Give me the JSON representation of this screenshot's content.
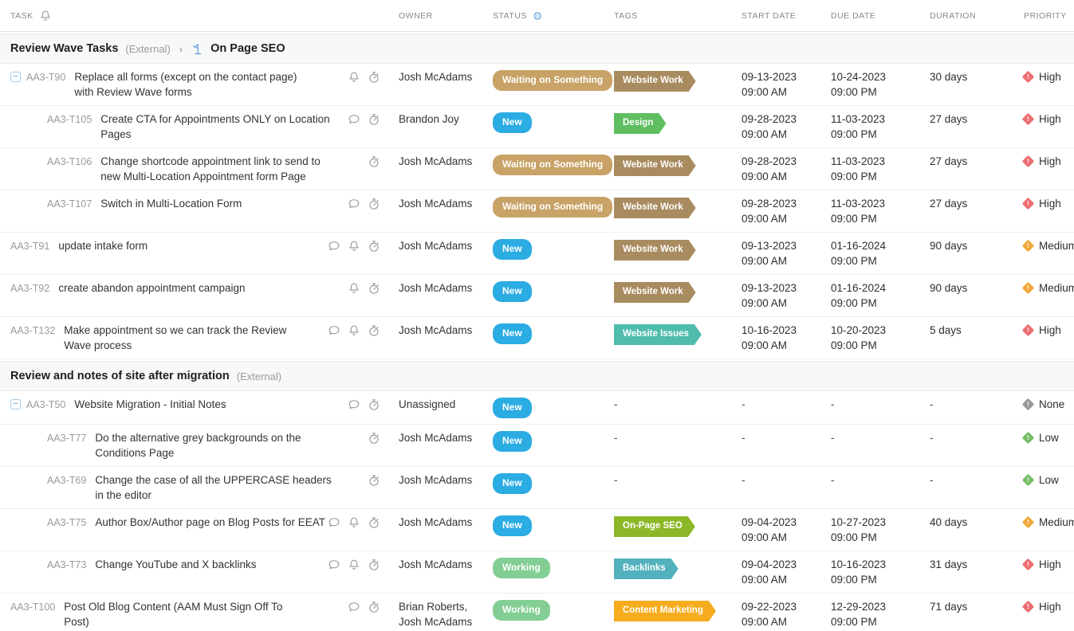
{
  "header": {
    "columns": [
      "TASK",
      "OWNER",
      "STATUS",
      "TAGS",
      "START DATE",
      "DUE DATE",
      "DURATION",
      "PRIORITY"
    ],
    "task_icon": "bell-icon",
    "status_icon": "gear-icon"
  },
  "ui": {
    "dash": "-",
    "expand_glyph": "−",
    "gear_glyph": "⚙",
    "crumb_separator": "›"
  },
  "colors": {
    "status": {
      "New": "#2BACE2",
      "Waiting on Something": "#C8A266",
      "Working": "#83CE94"
    },
    "tags": {
      "Website Work": "#A98B60",
      "Design": "#5FBE5F",
      "Website Issues": "#4FBCAC",
      "On-Page SEO": "#8CB827",
      "Backlinks": "#51B1BC",
      "Content Marketing": "#F6AC1D"
    },
    "priority": {
      "High": "#ED6E72",
      "Medium": "#F1A83B",
      "Low": "#76BD68",
      "None": "#98999B"
    },
    "checkbox_accent": "#3f9ddc",
    "gear_accent": "#6fa7dd",
    "milestone_flag": "#5e9bd5",
    "icon_grey": "#9aa0a6"
  },
  "sections": [
    {
      "title": "Review Wave Tasks",
      "external": "(External)",
      "milestone": "On Page SEO",
      "rows": [
        {
          "id": "AA3-T90",
          "parent": true,
          "indent": 0,
          "title": "Replace all forms (except on the contact page) with Review Wave forms",
          "icons": [
            "bell",
            "timer"
          ],
          "owner": "Josh McAdams",
          "status": "Waiting on Something",
          "tag": "Website Work",
          "start": {
            "date": "09-13-2023",
            "time": "09:00 AM"
          },
          "due": {
            "date": "10-24-2023",
            "time": "09:00 PM"
          },
          "duration": "30 days",
          "priority": "High"
        },
        {
          "id": "AA3-T105",
          "parent": false,
          "indent": 1,
          "title": "Create CTA for Appointments ONLY on Location Pages",
          "icons": [
            "comment",
            "timer"
          ],
          "owner": "Brandon Joy",
          "status": "New",
          "tag": "Design",
          "start": {
            "date": "09-28-2023",
            "time": "09:00 AM"
          },
          "due": {
            "date": "11-03-2023",
            "time": "09:00 PM"
          },
          "duration": "27 days",
          "priority": "High"
        },
        {
          "id": "AA3-T106",
          "parent": false,
          "indent": 1,
          "title": "Change shortcode appointment link to send to new Multi-Location Appointment form Page",
          "icons": [
            "timer"
          ],
          "owner": "Josh McAdams",
          "status": "Waiting on Something",
          "tag": "Website Work",
          "start": {
            "date": "09-28-2023",
            "time": "09:00 AM"
          },
          "due": {
            "date": "11-03-2023",
            "time": "09:00 PM"
          },
          "duration": "27 days",
          "priority": "High"
        },
        {
          "id": "AA3-T107",
          "parent": false,
          "indent": 1,
          "title": "Switch in Multi-Location Form",
          "icons": [
            "comment",
            "timer"
          ],
          "owner": "Josh McAdams",
          "status": "Waiting on Something",
          "tag": "Website Work",
          "start": {
            "date": "09-28-2023",
            "time": "09:00 AM"
          },
          "due": {
            "date": "11-03-2023",
            "time": "09:00 PM"
          },
          "duration": "27 days",
          "priority": "High"
        },
        {
          "id": "AA3-T91",
          "parent": false,
          "indent": 0,
          "title": "update intake form",
          "icons": [
            "comment",
            "bell",
            "timer"
          ],
          "owner": "Josh McAdams",
          "status": "New",
          "tag": "Website Work",
          "start": {
            "date": "09-13-2023",
            "time": "09:00 AM"
          },
          "due": {
            "date": "01-16-2024",
            "time": "09:00 PM"
          },
          "duration": "90 days",
          "priority": "Medium"
        },
        {
          "id": "AA3-T92",
          "parent": false,
          "indent": 0,
          "title": "create abandon appointment campaign",
          "icons": [
            "bell",
            "timer"
          ],
          "owner": "Josh McAdams",
          "status": "New",
          "tag": "Website Work",
          "start": {
            "date": "09-13-2023",
            "time": "09:00 AM"
          },
          "due": {
            "date": "01-16-2024",
            "time": "09:00 PM"
          },
          "duration": "90 days",
          "priority": "Medium"
        },
        {
          "id": "AA3-T132",
          "parent": false,
          "indent": 0,
          "title": "Make appointment so we can track the Review Wave process",
          "icons": [
            "comment",
            "bell",
            "timer"
          ],
          "owner": "Josh McAdams",
          "status": "New",
          "tag": "Website Issues",
          "start": {
            "date": "10-16-2023",
            "time": "09:00 AM"
          },
          "due": {
            "date": "10-20-2023",
            "time": "09:00 PM"
          },
          "duration": "5 days",
          "priority": "High"
        }
      ]
    },
    {
      "title": "Review and notes of site after migration",
      "external": "(External)",
      "milestone": null,
      "rows": [
        {
          "id": "AA3-T50",
          "parent": true,
          "indent": 0,
          "title": "Website Migration - Initial Notes",
          "icons": [
            "comment",
            "timer"
          ],
          "owner": "Unassigned",
          "status": "New",
          "tag": null,
          "start": null,
          "due": null,
          "duration": null,
          "priority": "None"
        },
        {
          "id": "AA3-T77",
          "parent": false,
          "indent": 1,
          "title": "Do the alternative grey backgrounds on the Conditions Page",
          "icons": [
            "timer"
          ],
          "owner": "Josh McAdams",
          "status": "New",
          "tag": null,
          "start": null,
          "due": null,
          "duration": null,
          "priority": "Low"
        },
        {
          "id": "AA3-T69",
          "parent": false,
          "indent": 1,
          "title": "Change the case of all the UPPERCASE headers in the editor",
          "icons": [
            "timer"
          ],
          "owner": "Josh McAdams",
          "status": "New",
          "tag": null,
          "start": null,
          "due": null,
          "duration": null,
          "priority": "Low"
        },
        {
          "id": "AA3-T75",
          "parent": false,
          "indent": 1,
          "title": "Author Box/Author page on Blog Posts for EEAT",
          "icons": [
            "comment",
            "bell",
            "timer"
          ],
          "owner": "Josh McAdams",
          "status": "New",
          "tag": "On-Page SEO",
          "start": {
            "date": "09-04-2023",
            "time": "09:00 AM"
          },
          "due": {
            "date": "10-27-2023",
            "time": "09:00 PM"
          },
          "duration": "40 days",
          "priority": "Medium"
        },
        {
          "id": "AA3-T73",
          "parent": false,
          "indent": 1,
          "title": "Change YouTube and X backlinks",
          "icons": [
            "comment",
            "bell",
            "timer"
          ],
          "owner": "Josh McAdams",
          "status": "Working",
          "tag": "Backlinks",
          "start": {
            "date": "09-04-2023",
            "time": "09:00 AM"
          },
          "due": {
            "date": "10-16-2023",
            "time": "09:00 PM"
          },
          "duration": "31 days",
          "priority": "High"
        },
        {
          "id": "AA3-T100",
          "parent": false,
          "indent": 0,
          "title": "Post Old Blog Content (AAM Must Sign Off To Post)",
          "icons": [
            "comment",
            "timer"
          ],
          "owner": "Brian Roberts, Josh McAdams",
          "status": "Working",
          "tag": "Content Marketing",
          "start": {
            "date": "09-22-2023",
            "time": "09:00 AM"
          },
          "due": {
            "date": "12-29-2023",
            "time": "09:00 PM"
          },
          "duration": "71 days",
          "priority": "High"
        }
      ]
    }
  ]
}
